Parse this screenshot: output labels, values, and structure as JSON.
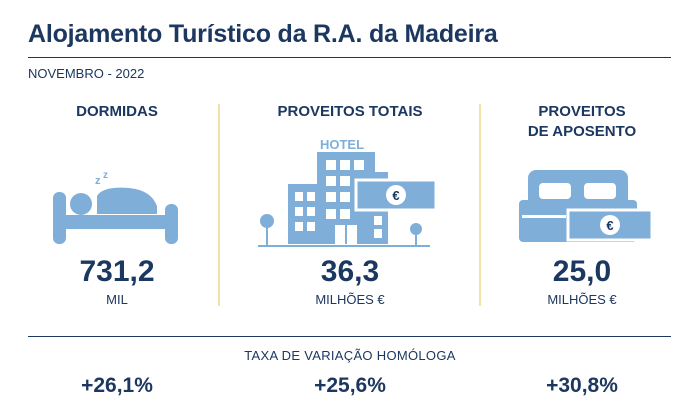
{
  "header": {
    "title": "Alojamento Turístico da R.A. da Madeira",
    "period": "NOVEMBRO - 2022"
  },
  "indicators": [
    {
      "heading": "DORMIDAS",
      "value": "731,2",
      "unit": "MIL",
      "icon": "sleeping-person-icon",
      "variation": "+26,1%"
    },
    {
      "heading": "PROVEITOS TOTAIS",
      "value": "36,3",
      "unit": "MILHÕES €",
      "icon": "hotel-icon",
      "icon_text": "HOTEL",
      "variation": "+25,6%"
    },
    {
      "heading": "PROVEITOS\nDE APOSENTO",
      "heading_line1": "PROVEITOS",
      "heading_line2": "DE APOSENTO",
      "value": "25,0",
      "unit": "MILHÕES €",
      "icon": "bed-icon",
      "variation": "+30,8%"
    }
  ],
  "variation_label": "TAXA DE VARIAÇÃO HOMÓLOGA",
  "currency_symbol": "€",
  "colors": {
    "primary": "#1c3760",
    "icon": "#7fafd9",
    "divider": "#f3e2a4"
  }
}
